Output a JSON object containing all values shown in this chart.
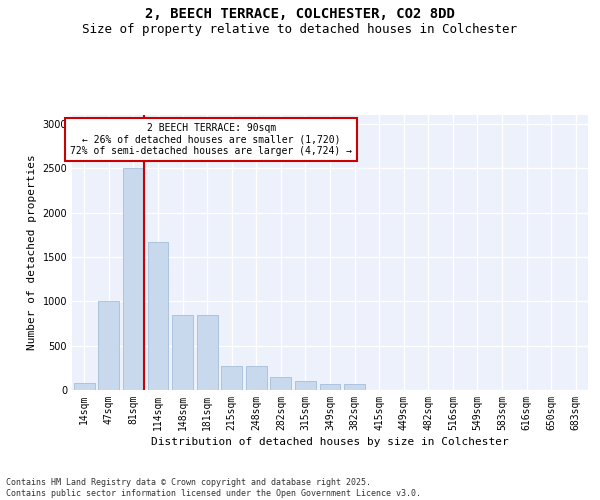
{
  "title_line1": "2, BEECH TERRACE, COLCHESTER, CO2 8DD",
  "title_line2": "Size of property relative to detached houses in Colchester",
  "xlabel": "Distribution of detached houses by size in Colchester",
  "ylabel": "Number of detached properties",
  "categories": [
    "14sqm",
    "47sqm",
    "81sqm",
    "114sqm",
    "148sqm",
    "181sqm",
    "215sqm",
    "248sqm",
    "282sqm",
    "315sqm",
    "349sqm",
    "382sqm",
    "415sqm",
    "449sqm",
    "482sqm",
    "516sqm",
    "549sqm",
    "583sqm",
    "616sqm",
    "650sqm",
    "683sqm"
  ],
  "values": [
    75,
    1000,
    2500,
    1670,
    850,
    850,
    270,
    270,
    150,
    100,
    70,
    70,
    5,
    0,
    5,
    0,
    0,
    0,
    0,
    0,
    0
  ],
  "bar_color": "#c8d9ee",
  "bar_edge_color": "#9ab5d5",
  "vline_color": "#cc0000",
  "annotation_text": "2 BEECH TERRACE: 90sqm\n← 26% of detached houses are smaller (1,720)\n72% of semi-detached houses are larger (4,724) →",
  "annotation_box_color": "#ffffff",
  "annotation_box_edge": "#cc0000",
  "ylim": [
    0,
    3100
  ],
  "yticks": [
    0,
    500,
    1000,
    1500,
    2000,
    2500,
    3000
  ],
  "background_color": "#edf1fb",
  "grid_color": "#ffffff",
  "footnote": "Contains HM Land Registry data © Crown copyright and database right 2025.\nContains public sector information licensed under the Open Government Licence v3.0.",
  "title_fontsize": 10,
  "subtitle_fontsize": 9,
  "tick_fontsize": 7,
  "ylabel_fontsize": 8,
  "xlabel_fontsize": 8,
  "annot_fontsize": 7,
  "footnote_fontsize": 6
}
